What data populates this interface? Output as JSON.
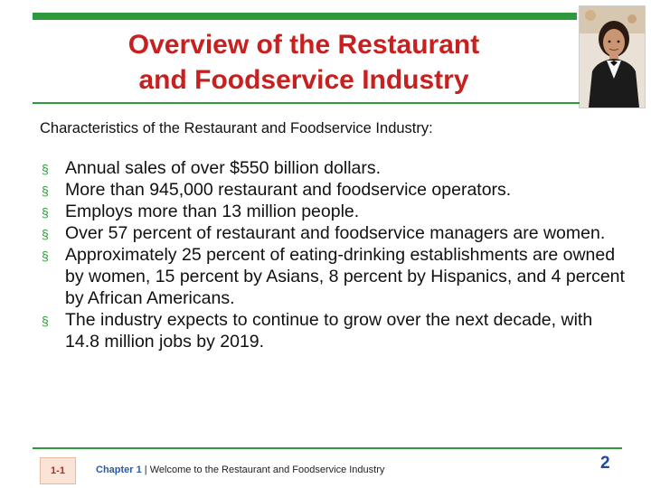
{
  "slide": {
    "title_line1": "Overview of the Restaurant",
    "title_line2": "and Foodservice Industry",
    "subtitle": "Characteristics of the Restaurant and Foodservice Industry:",
    "bullet_symbol": "§",
    "bullets": [
      "Annual sales of over $550 billion dollars.",
      "More than 945,000 restaurant and foodservice operators.",
      "Employs more than 13 million people.",
      "Over 57 percent of restaurant and foodservice managers are women.",
      "Approximately 25 percent of eating-drinking establishments are owned by women, 15 percent by Asians, 8 percent by Hispanics, and 4 percent by African Americans.",
      "The industry expects to continue to grow over the next decade, with 14.8 million jobs by 2019."
    ]
  },
  "footer": {
    "page_label": "1-1",
    "chapter": "Chapter 1",
    "separator": " | ",
    "chapter_title": "Welcome to the Restaurant and Foodservice Industry",
    "page_number": "2"
  },
  "colors": {
    "accent_green": "#2e9a3b",
    "title_red": "#c8201f",
    "footer_blue": "#1e49a8"
  },
  "icons": {
    "photo": "server-woman-photo"
  }
}
